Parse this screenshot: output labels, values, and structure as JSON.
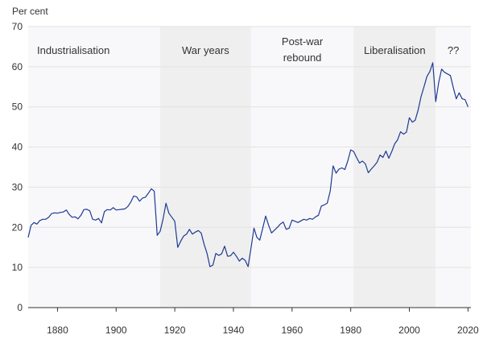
{
  "chart_data": {
    "type": "line",
    "title": "",
    "ylabel": "Per cent",
    "xlabel": "",
    "xlim": [
      1870,
      2021
    ],
    "ylim": [
      0,
      70
    ],
    "x_ticks": [
      "1880",
      "1900",
      "1920",
      "1940",
      "1960",
      "1980",
      "2000",
      "2020"
    ],
    "y_ticks": [
      "0",
      "10",
      "20",
      "30",
      "40",
      "50",
      "60",
      "70"
    ],
    "grid": "horizontal",
    "line_color": "#1f3a93",
    "eras": [
      {
        "label_lines": [
          "Industrialisation"
        ],
        "start": 1870,
        "end": 1915,
        "shade": "#f8f8fa"
      },
      {
        "label_lines": [
          "War years"
        ],
        "start": 1915,
        "end": 1946,
        "shade": "#efefef"
      },
      {
        "label_lines": [
          "Post-war",
          "rebound"
        ],
        "start": 1946,
        "end": 1981,
        "shade": "#f8f8fa"
      },
      {
        "label_lines": [
          "Liberalisation"
        ],
        "start": 1981,
        "end": 2009,
        "shade": "#efefef"
      },
      {
        "label_lines": [
          "??"
        ],
        "start": 2009,
        "end": 2021,
        "shade": "#f8f8fa"
      }
    ],
    "series": [
      {
        "points": [
          [
            1870,
            17.5
          ],
          [
            1871,
            20.5
          ],
          [
            1872,
            21.2
          ],
          [
            1873,
            20.8
          ],
          [
            1874,
            21.7
          ],
          [
            1875,
            22.0
          ],
          [
            1876,
            22.0
          ],
          [
            1877,
            22.5
          ],
          [
            1878,
            23.4
          ],
          [
            1879,
            23.6
          ],
          [
            1880,
            23.5
          ],
          [
            1881,
            23.7
          ],
          [
            1882,
            23.8
          ],
          [
            1883,
            24.3
          ],
          [
            1884,
            23.2
          ],
          [
            1885,
            22.5
          ],
          [
            1886,
            22.6
          ],
          [
            1887,
            22.1
          ],
          [
            1888,
            23.0
          ],
          [
            1889,
            24.4
          ],
          [
            1890,
            24.5
          ],
          [
            1891,
            24.1
          ],
          [
            1892,
            22.0
          ],
          [
            1893,
            21.8
          ],
          [
            1894,
            22.2
          ],
          [
            1895,
            21.1
          ],
          [
            1896,
            23.9
          ],
          [
            1897,
            24.4
          ],
          [
            1898,
            24.3
          ],
          [
            1899,
            24.9
          ],
          [
            1900,
            24.3
          ],
          [
            1901,
            24.4
          ],
          [
            1902,
            24.5
          ],
          [
            1903,
            24.6
          ],
          [
            1904,
            25.2
          ],
          [
            1905,
            26.3
          ],
          [
            1906,
            27.8
          ],
          [
            1907,
            27.6
          ],
          [
            1908,
            26.5
          ],
          [
            1909,
            27.3
          ],
          [
            1910,
            27.5
          ],
          [
            1911,
            28.5
          ],
          [
            1912,
            29.6
          ],
          [
            1913,
            29.0
          ],
          [
            1914,
            18.0
          ],
          [
            1915,
            19.0
          ],
          [
            1916,
            22.0
          ],
          [
            1917,
            26.0
          ],
          [
            1918,
            23.5
          ],
          [
            1919,
            22.5
          ],
          [
            1920,
            21.5
          ],
          [
            1921,
            15.0
          ],
          [
            1922,
            16.5
          ],
          [
            1923,
            17.8
          ],
          [
            1924,
            18.3
          ],
          [
            1925,
            19.5
          ],
          [
            1926,
            18.3
          ],
          [
            1927,
            18.8
          ],
          [
            1928,
            19.2
          ],
          [
            1929,
            18.6
          ],
          [
            1930,
            15.8
          ],
          [
            1931,
            13.5
          ],
          [
            1932,
            10.2
          ],
          [
            1933,
            10.6
          ],
          [
            1934,
            13.5
          ],
          [
            1935,
            13.0
          ],
          [
            1936,
            13.4
          ],
          [
            1937,
            15.3
          ],
          [
            1938,
            12.8
          ],
          [
            1939,
            12.9
          ],
          [
            1940,
            13.8
          ],
          [
            1941,
            12.8
          ],
          [
            1942,
            11.6
          ],
          [
            1943,
            12.3
          ],
          [
            1944,
            11.8
          ],
          [
            1945,
            10.2
          ],
          [
            1946,
            14.8
          ],
          [
            1947,
            19.8
          ],
          [
            1948,
            17.5
          ],
          [
            1949,
            16.8
          ],
          [
            1950,
            19.8
          ],
          [
            1951,
            22.8
          ],
          [
            1952,
            20.5
          ],
          [
            1953,
            18.6
          ],
          [
            1954,
            19.3
          ],
          [
            1955,
            20.0
          ],
          [
            1956,
            20.8
          ],
          [
            1957,
            21.3
          ],
          [
            1958,
            19.5
          ],
          [
            1959,
            19.8
          ],
          [
            1960,
            21.8
          ],
          [
            1961,
            21.5
          ],
          [
            1962,
            21.2
          ],
          [
            1963,
            21.6
          ],
          [
            1964,
            22.0
          ],
          [
            1965,
            21.8
          ],
          [
            1966,
            22.2
          ],
          [
            1967,
            22.0
          ],
          [
            1968,
            22.6
          ],
          [
            1969,
            23.0
          ],
          [
            1970,
            25.3
          ],
          [
            1971,
            25.6
          ],
          [
            1972,
            26.0
          ],
          [
            1973,
            29.0
          ],
          [
            1974,
            35.3
          ],
          [
            1975,
            33.5
          ],
          [
            1976,
            34.5
          ],
          [
            1977,
            34.8
          ],
          [
            1978,
            34.4
          ],
          [
            1979,
            36.5
          ],
          [
            1980,
            39.3
          ],
          [
            1981,
            38.9
          ],
          [
            1982,
            37.4
          ],
          [
            1983,
            36.0
          ],
          [
            1984,
            36.5
          ],
          [
            1985,
            35.8
          ],
          [
            1986,
            33.6
          ],
          [
            1987,
            34.5
          ],
          [
            1988,
            35.3
          ],
          [
            1989,
            36.2
          ],
          [
            1990,
            38.0
          ],
          [
            1991,
            37.4
          ],
          [
            1992,
            39.0
          ],
          [
            1993,
            37.2
          ],
          [
            1994,
            38.9
          ],
          [
            1995,
            40.8
          ],
          [
            1996,
            41.8
          ],
          [
            1997,
            43.8
          ],
          [
            1998,
            43.2
          ],
          [
            1999,
            43.7
          ],
          [
            2000,
            47.3
          ],
          [
            2001,
            46.2
          ],
          [
            2002,
            46.7
          ],
          [
            2003,
            49.2
          ],
          [
            2004,
            52.6
          ],
          [
            2005,
            55.0
          ],
          [
            2006,
            57.6
          ],
          [
            2007,
            58.8
          ],
          [
            2008,
            61.0
          ],
          [
            2009,
            51.3
          ],
          [
            2010,
            56.0
          ],
          [
            2011,
            59.4
          ],
          [
            2012,
            58.6
          ],
          [
            2013,
            58.2
          ],
          [
            2014,
            57.8
          ],
          [
            2015,
            54.8
          ],
          [
            2016,
            52.0
          ],
          [
            2017,
            53.5
          ],
          [
            2018,
            52.0
          ],
          [
            2019,
            51.8
          ],
          [
            2020,
            50.0
          ]
        ]
      }
    ]
  }
}
